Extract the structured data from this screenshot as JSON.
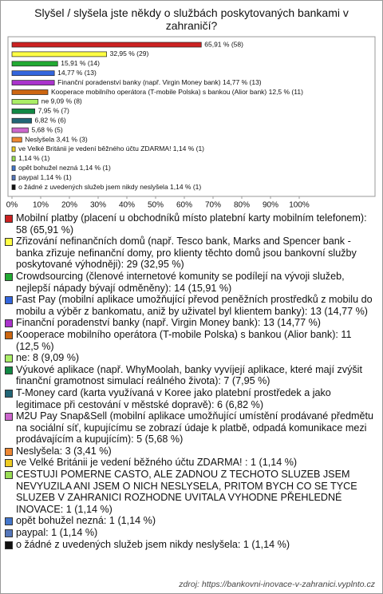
{
  "chart_data": {
    "type": "bar",
    "orientation": "horizontal",
    "title": "Slyšel / slyšela jste někdy o službách poskytovaných bankami v zahraničí?",
    "values": [
      65.91,
      32.95,
      15.91,
      14.77,
      14.77,
      12.5,
      9.09,
      7.95,
      6.82,
      5.68,
      3.41,
      1.14,
      1.14,
      1.14,
      1.14,
      1.14
    ],
    "value_labels": [
      "65,91 % (58)",
      "32,95 % (29)",
      "15,91 % (14)",
      "14,77 % (13)",
      "Finanční poradenství banky (např. Virgin Money bank) 14,77 % (13)",
      "Kooperace mobilního operátora (T-mobile Polska) s bankou (Alior bank) 12,5 % (11)",
      "ne 9,09 % (8)",
      "7,95 % (7)",
      "6,82 % (6)",
      "5,68 % (5)",
      "Neslyšela 3,41 % (3)",
      "ve Velké Británii je vedení běžného účtu ZDARMA! 1,14 % (1)",
      "1,14 % (1)",
      "opět bohužel nezná 1,14 % (1)",
      "paypal 1,14 % (1)",
      "o žádné z uvedených služeb jsem nikdy neslyšela 1,14 % (1)"
    ],
    "colors": [
      "#cc2222",
      "#ffff44",
      "#22aa33",
      "#3366dd",
      "#aa33cc",
      "#cc6611",
      "#aaee66",
      "#118844",
      "#226677",
      "#cc66cc",
      "#ee8833",
      "#eecc22",
      "#99dd55",
      "#4477cc",
      "#5577bb",
      "#111111"
    ],
    "categories": [
      "Mobilní platby (placení u obchodníků místo platební karty mobilním telefonem): 58 (65,91 %)",
      "Zřizování nefinančních domů (např. Tesco bank, Marks and Spencer bank - banka zřizuje nefinanční domy, pro klienty těchto domů jsou bankovní služby poskytované výhodněji): 29 (32,95 %)",
      "Crowdsourcing (členové internetové komunity se podílejí na vývoji služeb, nejlepší nápady bývají odměněny): 14 (15,91 %)",
      "Fast Pay (mobilní aplikace umožňující převod peněžních prostředků z mobilu do mobilu a výběr z bankomatu, aniž by uživatel byl klientem banky): 13 (14,77 %)",
      "Finanční poradenství banky (např. Virgin Money bank): 13 (14,77 %)",
      "Kooperace mobilního operátora (T-mobile Polska) s bankou (Alior bank): 11 (12,5 %)",
      "ne: 8 (9,09 %)",
      "Výukové aplikace (např. WhyMoolah, banky vyvíjejí aplikace, které mají zvýšit finanční gramotnost simulací reálného života): 7 (7,95 %)",
      "T-Money card (karta využívaná v Koree jako platební prostředek a jako legitimace při cestování v městské dopravě): 6 (6,82 %)",
      "M2U Pay Snap&Sell (mobilní aplikace umožňující umístění prodávané předmětu na sociální síť, kupujícímu se zobrazí údaje k platbě, odpadá komunikace mezi prodávajícím a kupujícím): 5 (5,68 %)",
      "Neslyšela: 3 (3,41 %)",
      "ve Velké Británii je vedení běžného účtu ZDARMA! : 1 (1,14 %)",
      "CESTUJI POMERNE CASTO, ALE ZADNOU Z TECHOTO SLUZEB JSEM NEVYUZILA ANI JSEM O NICH NESLYSELA, PRITOM BYCH CO SE TYCE SLUZEB V ZAHRANICI ROZHODNE UVITALA VYHODNE PŘEHLEDNÉ INOVACE: 1 (1,14 %)",
      "opět bohužel nezná: 1 (1,14 %)",
      "paypal: 1 (1,14 %)",
      "o žádné z uvedených služeb jsem nikdy neslyšela: 1 (1,14 %)"
    ],
    "xlim": [
      0,
      100
    ],
    "xticks": [
      {
        "value": 0,
        "label": "0%"
      },
      {
        "value": 10,
        "label": "10%"
      },
      {
        "value": 20,
        "label": "20%"
      },
      {
        "value": 30,
        "label": "30%"
      },
      {
        "value": 40,
        "label": "40%"
      },
      {
        "value": 50,
        "label": "50%"
      },
      {
        "value": 60,
        "label": "60%"
      },
      {
        "value": 70,
        "label": "70%"
      },
      {
        "value": 80,
        "label": "80%"
      },
      {
        "value": 90,
        "label": "90%"
      },
      {
        "value": 100,
        "label": "100%"
      }
    ],
    "source": "zdroj: https://bankovni-inovace-v-zahranici.vyplnto.cz"
  }
}
